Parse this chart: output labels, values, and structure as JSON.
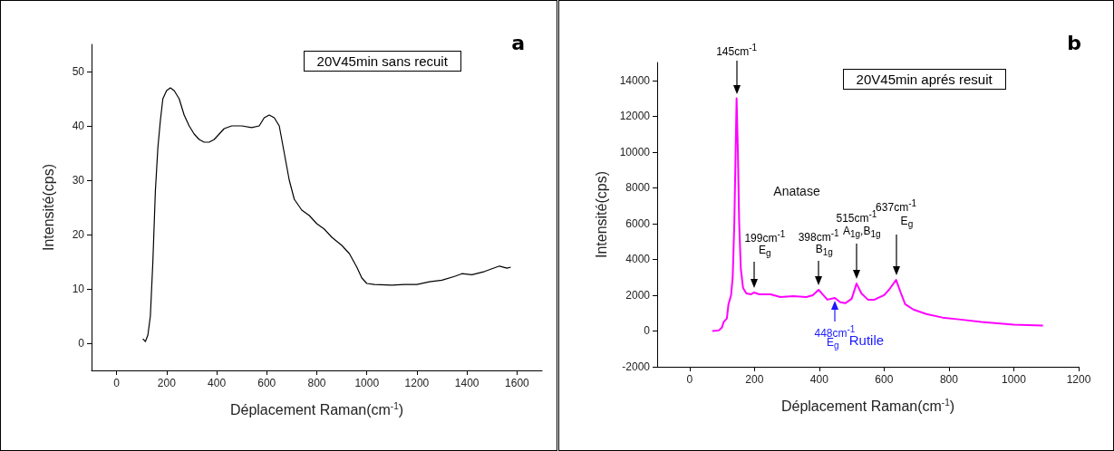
{
  "chart_data": [
    {
      "type": "line",
      "title": "a",
      "xlabel": "Déplacement Raman(cm$^{-1}$)",
      "ylabel": "Intensité(cps)",
      "marker": "none",
      "line_style": "solid",
      "grid": false,
      "xlim": [
        -100,
        1700
      ],
      "xticks": [
        0,
        200,
        400,
        600,
        800,
        1000,
        1200,
        1400,
        1600
      ],
      "ylim": [
        -5,
        55
      ],
      "yticks": [
        0,
        10,
        20,
        30,
        40,
        50
      ],
      "annotations": [
        "20V45min sans recuit"
      ],
      "series": [
        {
          "color": "#000000",
          "x": [
            105,
            115,
            125,
            135,
            145,
            155,
            165,
            175,
            185,
            200,
            215,
            230,
            250,
            270,
            290,
            310,
            330,
            350,
            370,
            390,
            410,
            430,
            460,
            500,
            540,
            570,
            590,
            610,
            630,
            650,
            670,
            690,
            710,
            740,
            770,
            800,
            830,
            860,
            900,
            930,
            960,
            980,
            1000,
            1030,
            1100,
            1150,
            1200,
            1250,
            1300,
            1350,
            1380,
            1420,
            1470,
            1530,
            1560,
            1575
          ],
          "values": [
            0.8,
            0.3,
            1.5,
            5,
            15,
            28,
            36,
            41,
            45,
            46.5,
            47,
            46.5,
            45,
            42,
            40,
            38.5,
            37.5,
            37,
            37,
            37.5,
            38.5,
            39.5,
            40,
            40,
            39.7,
            40,
            41.5,
            42,
            41.5,
            40,
            35,
            30,
            26.5,
            24.5,
            23.5,
            22,
            21,
            19.5,
            18,
            16.5,
            14,
            12,
            11,
            10.8,
            10.7,
            10.8,
            10.8,
            11.3,
            11.6,
            12.3,
            12.8,
            12.6,
            13.2,
            14.2,
            13.8,
            14
          ]
        }
      ]
    },
    {
      "type": "line",
      "title": "b",
      "xlabel": "Déplacement Raman(cm$^{-1}$)",
      "ylabel": "Intensité(cps)",
      "marker": "none",
      "line_style": "solid",
      "grid": false,
      "xlim": [
        -100,
        1200
      ],
      "xticks": [
        0,
        200,
        400,
        600,
        800,
        1000,
        1200
      ],
      "ylim": [
        -2000,
        15000
      ],
      "yticks": [
        -2000,
        0,
        2000,
        4000,
        6000,
        8000,
        10000,
        12000,
        14000
      ],
      "annotations": [
        "20V45min aprés resuit",
        "Anatase",
        "145cm$^{-1}$",
        "199cm$^{-1}$",
        "E$_{g}$",
        "398cm$^{-1}$",
        "B$_{1g}$",
        "515cm$^{-1}$",
        "A$_{1g}$,B$_{1g}$",
        "637cm$^{-1}$",
        "E$_{g}$",
        {
          "text": "448cm$^{-1}$",
          "x": 448,
          "y": 1850
        },
        "E$_{g}$",
        "Rutile"
      ],
      "series": [
        {
          "color": "#ff00ff",
          "x": [
            70,
            90,
            100,
            105,
            115,
            120,
            128,
            133,
            138,
            142,
            145,
            149,
            153,
            158,
            165,
            175,
            190,
            199,
            215,
            250,
            280,
            320,
            360,
            380,
            398,
            410,
            425,
            448,
            465,
            480,
            500,
            515,
            530,
            550,
            570,
            600,
            615,
            637,
            650,
            665,
            690,
            730,
            780,
            830,
            900,
            1000,
            1090
          ],
          "values": [
            0,
            30,
            200,
            500,
            700,
            1500,
            2000,
            3000,
            6000,
            10000,
            13000,
            10000,
            6000,
            3500,
            2400,
            2100,
            2050,
            2150,
            2050,
            2050,
            1900,
            1950,
            1900,
            2000,
            2300,
            2050,
            1750,
            1850,
            1600,
            1550,
            1800,
            2650,
            2100,
            1750,
            1750,
            2000,
            2300,
            2850,
            2200,
            1500,
            1200,
            950,
            750,
            650,
            500,
            350,
            300
          ]
        }
      ]
    }
  ]
}
